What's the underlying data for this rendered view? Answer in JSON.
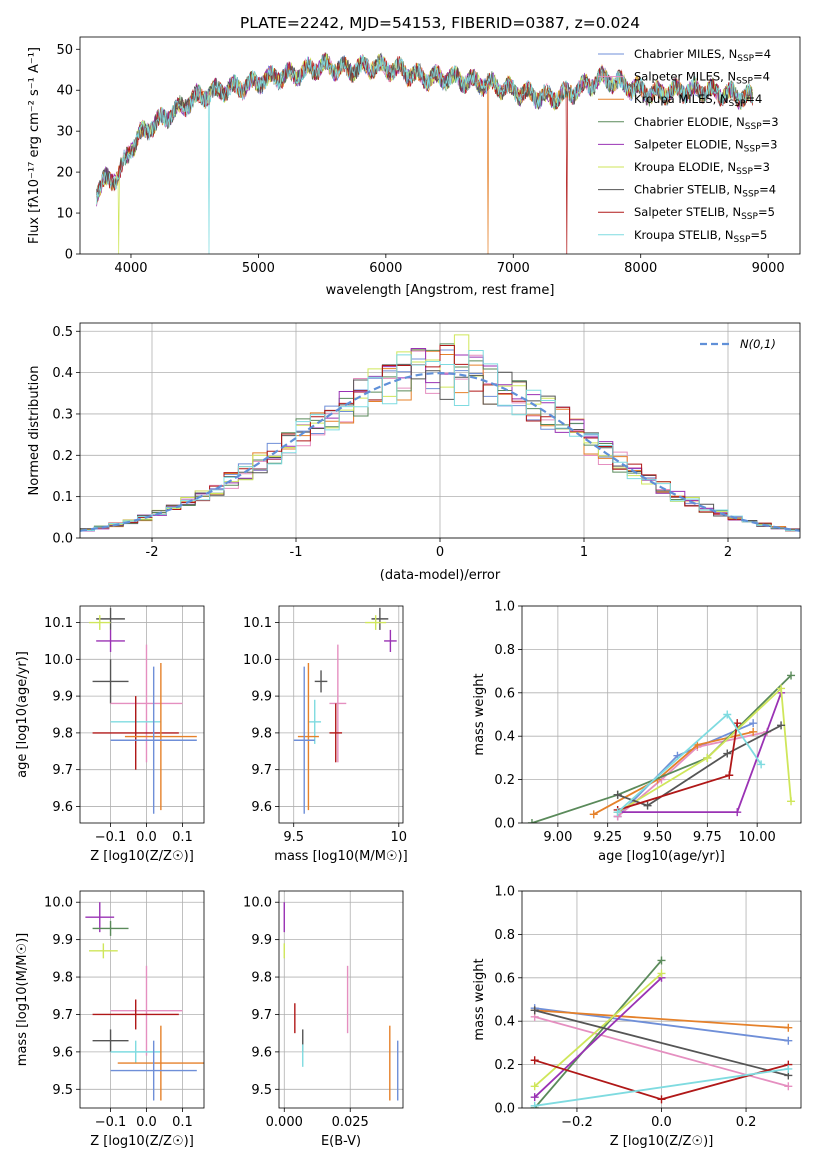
{
  "figure": {
    "title": "PLATE=2242, MJD=54153, FIBERID=0387, z=0.024"
  },
  "colors": {
    "Chabrier MILES": "#6f8fd8",
    "Salpeter MILES": "#e58fc0",
    "Kroupa MILES": "#e5812a",
    "Chabrier ELODIE": "#5a8a5a",
    "Salpeter ELODIE": "#9a32b4",
    "Kroupa ELODIE": "#cfe65a",
    "Chabrier STELIB": "#555555",
    "Salpeter STELIB": "#b01818",
    "Kroupa STELIB": "#7fdbe0",
    "gaussian": "#6090d8"
  },
  "chart_data": [
    {
      "id": "spectrum",
      "type": "line",
      "title": "PLATE=2242, MJD=54153, FIBERID=0387, z=0.024",
      "xlabel": "wavelength [Angstrom, rest frame]",
      "ylabel": "Flux [fλ10⁻¹⁷ erg cm⁻² s⁻¹ A⁻¹]",
      "xlim": [
        3600,
        9250
      ],
      "ylim": [
        0,
        53
      ],
      "xticks": [
        4000,
        5000,
        6000,
        7000,
        8000,
        9000
      ],
      "yticks": [
        0,
        10,
        20,
        30,
        40,
        50
      ],
      "grid": false,
      "legend_position": "right",
      "series": [
        {
          "name": "Chabrier MILES, N_SSP=4"
        },
        {
          "name": "Salpeter MILES, N_SSP=4"
        },
        {
          "name": "Kroupa MILES, N_SSP=4"
        },
        {
          "name": "Chabrier ELODIE, N_SSP=3"
        },
        {
          "name": "Salpeter ELODIE, N_SSP=3"
        },
        {
          "name": "Kroupa ELODIE, N_SSP=3"
        },
        {
          "name": "Chabrier STELIB, N_SSP=4"
        },
        {
          "name": "Salpeter STELIB, N_SSP=5"
        },
        {
          "name": "Kroupa STELIB, N_SSP=5"
        }
      ],
      "continuum": {
        "x": [
          3730,
          3800,
          3900,
          4000,
          4100,
          4300,
          4500,
          4700,
          4900,
          5100,
          5300,
          5500,
          5700,
          5900,
          6100,
          6300,
          6500,
          6700,
          6900,
          7100,
          7300,
          7500,
          7700,
          7900,
          8100,
          8300,
          8500,
          8700,
          8880
        ],
        "y": [
          15,
          18,
          19,
          26,
          30,
          34,
          38,
          40,
          41,
          43,
          44,
          46,
          45,
          46,
          45,
          43,
          43,
          42,
          41,
          39,
          38,
          40,
          43,
          41,
          39,
          40,
          40,
          39,
          38
        ]
      },
      "dips": [
        {
          "x": 3905,
          "y": 0,
          "series": "Kroupa ELODIE, N_SSP=3"
        },
        {
          "x": 4610,
          "y": 0,
          "series": "Kroupa STELIB, N_SSP=5"
        },
        {
          "x": 6800,
          "y": 0,
          "series": "Kroupa MILES, N_SSP=4"
        },
        {
          "x": 7420,
          "y": 0,
          "series": "Salpeter STELIB, N_SSP=5"
        }
      ]
    },
    {
      "id": "residuals",
      "type": "histogram",
      "xlabel": "(data-model)/error",
      "ylabel": "Normed distribution",
      "xlim": [
        -2.5,
        2.5
      ],
      "ylim": [
        0,
        0.52
      ],
      "xticks": [
        -2,
        -1,
        0,
        1,
        2
      ],
      "yticks": [
        0.0,
        0.1,
        0.2,
        0.3,
        0.4,
        0.5
      ],
      "grid": true,
      "legend_position": "top-right",
      "legend": "N(0,1)",
      "bins": {
        "start": -2.5,
        "width": 0.1,
        "count": 50
      },
      "overlay": {
        "name": "N(0,1)",
        "type": "gaussian",
        "mean": 0,
        "sigma": 1
      }
    },
    {
      "id": "age-vs-Z",
      "type": "errorbar",
      "xlabel": "Z [log10(Z/Z☉)]",
      "ylabel": "age [log10(age/yr)]",
      "xlim": [
        -0.185,
        0.16
      ],
      "ylim": [
        9.555,
        10.145
      ],
      "xticks": [
        -0.1,
        0.0,
        0.1
      ],
      "xticklabels": [
        "−0.1",
        "0.0",
        "0.1"
      ],
      "yticks": [
        9.6,
        9.7,
        9.8,
        9.9,
        10.0,
        10.1
      ],
      "grid": true,
      "points": [
        {
          "series": "Chabrier STELIB",
          "x": -0.1,
          "xerr": 0.04,
          "y": 10.11,
          "yerr": 0.03
        },
        {
          "series": "Kroupa ELODIE",
          "x": -0.13,
          "xerr": 0.03,
          "y": 10.1,
          "yerr": 0.02
        },
        {
          "series": "Salpeter ELODIE",
          "x": -0.1,
          "xerr": 0.04,
          "y": 10.05,
          "yerr": 0.03
        },
        {
          "series": "Chabrier STELIB",
          "x": -0.1,
          "xerr": 0.05,
          "y": 9.94,
          "yerr": 0.06
        },
        {
          "series": "Salpeter MILES",
          "x": 0.0,
          "xerr": 0.1,
          "y": 9.88,
          "yerr": 0.16
        },
        {
          "series": "Kroupa STELIB",
          "x": -0.03,
          "xerr": 0.07,
          "y": 9.83,
          "yerr": 0.06
        },
        {
          "series": "Salpeter STELIB",
          "x": -0.03,
          "xerr": 0.12,
          "y": 9.8,
          "yerr": 0.1
        },
        {
          "series": "Kroupa MILES",
          "x": 0.04,
          "xerr": 0.1,
          "y": 9.79,
          "yerr": 0.2
        },
        {
          "series": "Chabrier MILES",
          "x": 0.02,
          "xerr": 0.12,
          "y": 9.78,
          "yerr": 0.2
        }
      ]
    },
    {
      "id": "age-vs-mass",
      "type": "errorbar",
      "xlabel": "mass [log10(M/M☉)]",
      "xlim": [
        9.43,
        10.02
      ],
      "ylim": [
        9.555,
        10.145
      ],
      "xticks": [
        9.5,
        10.0
      ],
      "yticks": [
        9.6,
        9.7,
        9.8,
        9.9,
        10.0,
        10.1
      ],
      "grid": true,
      "points": [
        {
          "series": "Chabrier STELIB",
          "x": 9.91,
          "xerr": 0.04,
          "y": 10.11,
          "yerr": 0.03
        },
        {
          "series": "Kroupa ELODIE",
          "x": 9.89,
          "xerr": 0.05,
          "y": 10.1,
          "yerr": 0.02
        },
        {
          "series": "Salpeter ELODIE",
          "x": 9.96,
          "xerr": 0.03,
          "y": 10.05,
          "yerr": 0.03
        },
        {
          "series": "Chabrier STELIB",
          "x": 9.63,
          "xerr": 0.03,
          "y": 9.94,
          "yerr": 0.03
        },
        {
          "series": "Salpeter MILES",
          "x": 9.71,
          "xerr": 0.04,
          "y": 9.88,
          "yerr": 0.16
        },
        {
          "series": "Kroupa STELIB",
          "x": 9.6,
          "xerr": 0.03,
          "y": 9.83,
          "yerr": 0.06
        },
        {
          "series": "Salpeter STELIB",
          "x": 9.7,
          "xerr": 0.03,
          "y": 9.8,
          "yerr": 0.08
        },
        {
          "series": "Kroupa MILES",
          "x": 9.57,
          "xerr": 0.05,
          "y": 9.79,
          "yerr": 0.2
        },
        {
          "series": "Chabrier MILES",
          "x": 9.55,
          "xerr": 0.05,
          "y": 9.78,
          "yerr": 0.2
        }
      ]
    },
    {
      "id": "weight-vs-age",
      "type": "line",
      "xlabel": "age  [log10(age/yr)]",
      "ylabel": "mass weight",
      "xlim": [
        8.82,
        10.22
      ],
      "ylim": [
        0.0,
        1.0
      ],
      "xticks": [
        9.0,
        9.25,
        9.5,
        9.75,
        10.0
      ],
      "xticklabels": [
        "9.00",
        "9.25",
        "9.50",
        "9.75",
        "10.00"
      ],
      "yticks": [
        0.0,
        0.2,
        0.4,
        0.6,
        0.8,
        1.0
      ],
      "grid": true,
      "series": [
        {
          "series": "Chabrier MILES",
          "x": [
            9.3,
            9.6,
            9.98
          ],
          "y": [
            0.03,
            0.31,
            0.46
          ]
        },
        {
          "series": "Salpeter MILES",
          "x": [
            9.3,
            9.52,
            9.7,
            10.05
          ],
          "y": [
            0.03,
            0.2,
            0.35,
            0.42
          ]
        },
        {
          "series": "Kroupa MILES",
          "x": [
            9.18,
            9.5,
            9.7,
            9.98
          ],
          "y": [
            0.04,
            0.2,
            0.36,
            0.42
          ]
        },
        {
          "series": "Chabrier ELODIE",
          "x": [
            8.87,
            9.3,
            9.75,
            10.17
          ],
          "y": [
            0.0,
            0.13,
            0.3,
            0.68
          ]
        },
        {
          "series": "Salpeter ELODIE",
          "x": [
            9.3,
            9.9,
            10.12
          ],
          "y": [
            0.05,
            0.05,
            0.6
          ]
        },
        {
          "series": "Kroupa ELODIE",
          "x": [
            9.3,
            9.75,
            10.12,
            10.17
          ],
          "y": [
            0.05,
            0.3,
            0.62,
            0.1
          ]
        },
        {
          "series": "Chabrier STELIB",
          "x": [
            9.3,
            9.45,
            9.85,
            10.12
          ],
          "y": [
            0.13,
            0.08,
            0.32,
            0.45
          ]
        },
        {
          "series": "Salpeter STELIB",
          "x": [
            9.3,
            9.86,
            9.9
          ],
          "y": [
            0.06,
            0.22,
            0.46
          ]
        },
        {
          "series": "Kroupa STELIB",
          "x": [
            9.3,
            9.85,
            10.02
          ],
          "y": [
            0.05,
            0.5,
            0.27
          ]
        }
      ]
    },
    {
      "id": "mass-vs-Z",
      "type": "errorbar",
      "xlabel": "Z [log10(Z/Z☉)]",
      "ylabel": "mass [log10(M/M☉)]",
      "xlim": [
        -0.185,
        0.16
      ],
      "ylim": [
        9.45,
        10.03
      ],
      "xticks": [
        -0.1,
        0.0,
        0.1
      ],
      "xticklabels": [
        "−0.1",
        "0.0",
        "0.1"
      ],
      "yticks": [
        9.5,
        9.6,
        9.7,
        9.8,
        9.9,
        10.0
      ],
      "grid": true,
      "points": [
        {
          "series": "Salpeter ELODIE",
          "x": -0.13,
          "xerr": 0.04,
          "y": 9.96,
          "yerr": 0.04
        },
        {
          "series": "Chabrier ELODIE",
          "x": -0.1,
          "xerr": 0.05,
          "y": 9.93,
          "yerr": 0.02
        },
        {
          "series": "Kroupa ELODIE",
          "x": -0.12,
          "xerr": 0.04,
          "y": 9.87,
          "yerr": 0.02
        },
        {
          "series": "Salpeter MILES",
          "x": 0.0,
          "xerr": 0.1,
          "y": 9.71,
          "yerr": 0.12
        },
        {
          "series": "Salpeter STELIB",
          "x": -0.03,
          "xerr": 0.12,
          "y": 9.7,
          "yerr": 0.04
        },
        {
          "series": "Chabrier STELIB",
          "x": -0.1,
          "xerr": 0.05,
          "y": 9.63,
          "yerr": 0.03
        },
        {
          "series": "Kroupa STELIB",
          "x": -0.03,
          "xerr": 0.07,
          "y": 9.6,
          "yerr": 0.03
        },
        {
          "series": "Kroupa MILES",
          "x": 0.04,
          "xerr": 0.12,
          "y": 9.57,
          "yerr": 0.1
        },
        {
          "series": "Chabrier MILES",
          "x": 0.02,
          "xerr": 0.12,
          "y": 9.55,
          "yerr": 0.08
        }
      ]
    },
    {
      "id": "mass-vs-EBV",
      "type": "errorbar",
      "xlabel": "E(B-V)",
      "xlim": [
        -0.002,
        0.045
      ],
      "ylim": [
        9.45,
        10.03
      ],
      "xticks": [
        0.0,
        0.025
      ],
      "xticklabels": [
        "0.000",
        "0.025"
      ],
      "yticks": [
        9.5,
        9.6,
        9.7,
        9.8,
        9.9,
        10.0
      ],
      "grid": true,
      "points": [
        {
          "series": "Salpeter ELODIE",
          "x": 0.0,
          "xerr": 0,
          "y": 9.96,
          "yerr": 0.04
        },
        {
          "series": "Kroupa ELODIE",
          "x": 0.0,
          "xerr": 0,
          "y": 9.87,
          "yerr": 0.02
        },
        {
          "series": "Salpeter MILES",
          "x": 0.024,
          "xerr": 0,
          "y": 9.74,
          "yerr": 0.09
        },
        {
          "series": "Salpeter STELIB",
          "x": 0.004,
          "xerr": 0,
          "y": 9.69,
          "yerr": 0.04
        },
        {
          "series": "Chabrier STELIB",
          "x": 0.007,
          "xerr": 0,
          "y": 9.63,
          "yerr": 0.03
        },
        {
          "series": "Kroupa STELIB",
          "x": 0.007,
          "xerr": 0,
          "y": 9.59,
          "yerr": 0.03
        },
        {
          "series": "Kroupa MILES",
          "x": 0.04,
          "xerr": 0,
          "y": 9.57,
          "yerr": 0.1
        },
        {
          "series": "Chabrier MILES",
          "x": 0.043,
          "xerr": 0,
          "y": 9.55,
          "yerr": 0.08
        }
      ]
    },
    {
      "id": "weight-vs-Z",
      "type": "line",
      "xlabel": "Z [log10(Z/Z☉)]",
      "ylabel": "mass weight",
      "xlim": [
        -0.33,
        0.33
      ],
      "ylim": [
        0.0,
        1.0
      ],
      "xticks": [
        -0.2,
        0.0,
        0.2
      ],
      "xticklabels": [
        "−0.2",
        "0.0",
        "0.2"
      ],
      "yticks": [
        0.0,
        0.2,
        0.4,
        0.6,
        0.8,
        1.0
      ],
      "grid": true,
      "series": [
        {
          "series": "Chabrier MILES",
          "x": [
            -0.3,
            0.3
          ],
          "y": [
            0.46,
            0.31
          ]
        },
        {
          "series": "Salpeter MILES",
          "x": [
            -0.3,
            0.3
          ],
          "y": [
            0.42,
            0.1
          ]
        },
        {
          "series": "Kroupa MILES",
          "x": [
            -0.3,
            0.3
          ],
          "y": [
            0.45,
            0.37
          ]
        },
        {
          "series": "Chabrier ELODIE",
          "x": [
            -0.3,
            0.0
          ],
          "y": [
            0.0,
            0.68
          ]
        },
        {
          "series": "Salpeter ELODIE",
          "x": [
            -0.3,
            0.0
          ],
          "y": [
            0.05,
            0.6
          ]
        },
        {
          "series": "Kroupa ELODIE",
          "x": [
            -0.3,
            0.0
          ],
          "y": [
            0.1,
            0.62
          ]
        },
        {
          "series": "Chabrier STELIB",
          "x": [
            -0.3,
            0.3
          ],
          "y": [
            0.45,
            0.15
          ]
        },
        {
          "series": "Salpeter STELIB",
          "x": [
            -0.3,
            0.0,
            0.3
          ],
          "y": [
            0.22,
            0.04,
            0.2
          ]
        },
        {
          "series": "Kroupa STELIB",
          "x": [
            -0.3,
            0.3
          ],
          "y": [
            0.01,
            0.18
          ]
        }
      ]
    }
  ]
}
